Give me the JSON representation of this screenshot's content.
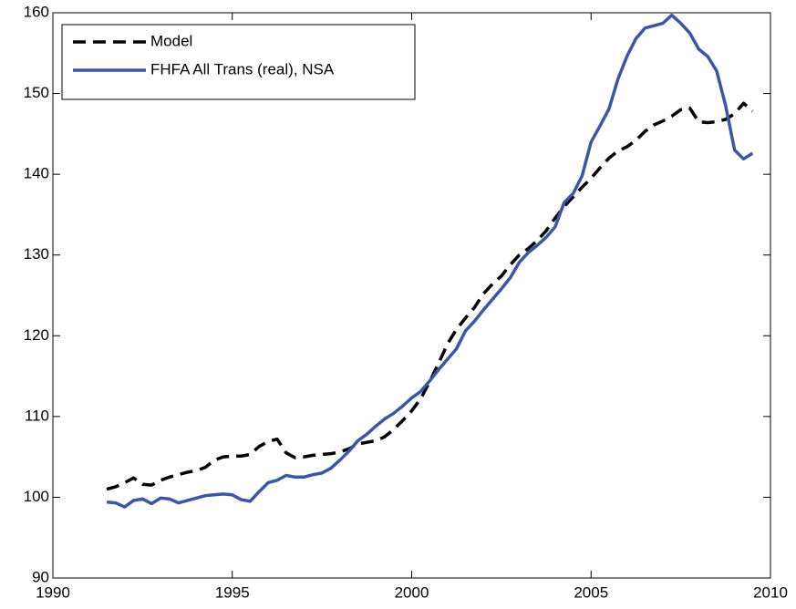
{
  "chart_data": {
    "type": "line",
    "x": [
      1991.5,
      1991.75,
      1992,
      1992.25,
      1992.5,
      1992.75,
      1993,
      1993.25,
      1993.5,
      1993.75,
      1994,
      1994.25,
      1994.5,
      1994.75,
      1995,
      1995.25,
      1995.5,
      1995.75,
      1996,
      1996.25,
      1996.5,
      1996.75,
      1997,
      1997.25,
      1997.5,
      1997.75,
      1998,
      1998.25,
      1998.5,
      1998.75,
      1999,
      1999.25,
      1999.5,
      1999.75,
      2000,
      2000.25,
      2000.5,
      2000.75,
      2001,
      2001.25,
      2001.5,
      2001.75,
      2002,
      2002.25,
      2002.5,
      2002.75,
      2003,
      2003.25,
      2003.5,
      2003.75,
      2004,
      2004.25,
      2004.5,
      2004.75,
      2005,
      2005.25,
      2005.5,
      2005.75,
      2006,
      2006.25,
      2006.5,
      2006.75,
      2007,
      2007.25,
      2007.5,
      2007.75,
      2008,
      2008.25,
      2008.5,
      2008.75,
      2009,
      2009.25,
      2009.5
    ],
    "series": [
      {
        "name": "Model",
        "color": "#000000",
        "style": "dashed",
        "values": [
          101.0,
          101.3,
          101.8,
          102.4,
          101.6,
          101.5,
          102.1,
          102.5,
          102.8,
          103.1,
          103.3,
          103.7,
          104.6,
          105.0,
          105.1,
          105.1,
          105.3,
          106.3,
          106.9,
          107.2,
          105.5,
          104.9,
          105.0,
          105.2,
          105.3,
          105.4,
          105.6,
          106.0,
          106.6,
          106.8,
          107.0,
          107.5,
          108.4,
          109.5,
          110.7,
          112.2,
          114.3,
          116.6,
          119.0,
          120.8,
          122.2,
          123.5,
          125.2,
          126.4,
          127.4,
          128.8,
          130.0,
          130.8,
          131.8,
          133.0,
          134.6,
          136.0,
          137.2,
          138.4,
          139.5,
          140.8,
          142.0,
          142.9,
          143.4,
          144.2,
          145.3,
          146.1,
          146.6,
          147.2,
          148.0,
          148.2,
          146.5,
          146.4,
          146.5,
          146.8,
          147.5,
          148.8,
          147.8
        ]
      },
      {
        "name": "FHFA All Trans (real), NSA",
        "color": "#3b56a5",
        "style": "solid",
        "values": [
          99.4,
          99.3,
          98.8,
          99.6,
          99.8,
          99.2,
          99.9,
          99.8,
          99.3,
          99.6,
          99.9,
          100.2,
          100.3,
          100.4,
          100.3,
          99.7,
          99.5,
          100.7,
          101.8,
          102.1,
          102.7,
          102.5,
          102.5,
          102.8,
          103.0,
          103.6,
          104.6,
          105.7,
          107.0,
          107.8,
          108.8,
          109.7,
          110.4,
          111.3,
          112.3,
          113.1,
          114.4,
          115.8,
          117.1,
          118.4,
          120.6,
          121.8,
          123.2,
          124.5,
          125.8,
          127.2,
          129.1,
          130.3,
          131.2,
          132.2,
          133.5,
          136.5,
          137.6,
          139.8,
          144.0,
          146.0,
          148.1,
          151.8,
          154.6,
          156.8,
          158.1,
          158.4,
          158.7,
          159.7,
          158.7,
          157.5,
          155.5,
          154.6,
          152.8,
          148.5,
          143.0,
          141.9,
          142.6
        ]
      }
    ],
    "xlim": [
      1990,
      2010
    ],
    "xticks": [
      1990,
      1995,
      2000,
      2005,
      2010
    ],
    "ylim": [
      90,
      160
    ],
    "yticks": [
      90,
      100,
      110,
      120,
      130,
      140,
      150,
      160
    ],
    "grid": false,
    "legend": "upper left"
  }
}
